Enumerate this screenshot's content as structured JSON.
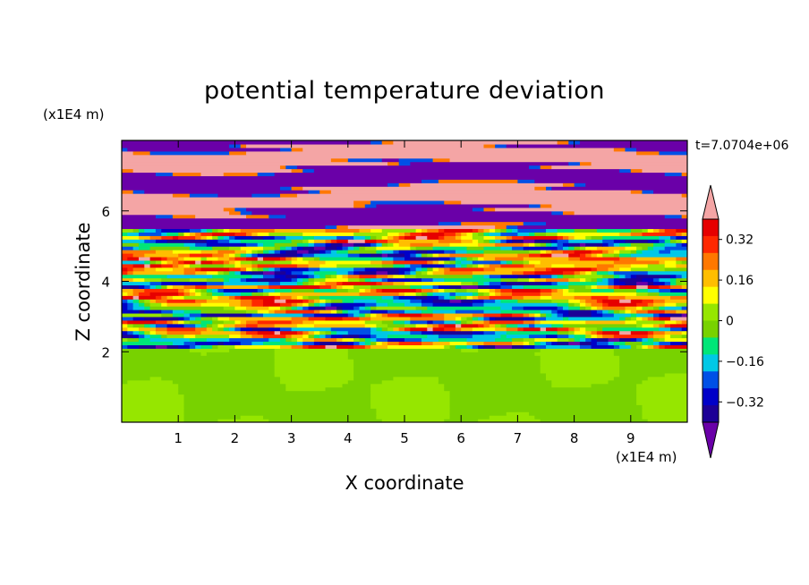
{
  "chart_data": {
    "type": "heatmap",
    "title": "potential temperature deviation",
    "xlabel": "X coordinate",
    "ylabel": "Z coordinate",
    "x_unit": "(x1E4 m)",
    "y_unit": "(x1E4 m)",
    "time_label": "t=7.0704e+06",
    "xlim": [
      0,
      10
    ],
    "ylim": [
      0,
      8
    ],
    "x_ticks": [
      "1",
      "2",
      "3",
      "4",
      "5",
      "6",
      "7",
      "8",
      "9"
    ],
    "y_ticks": [
      "2",
      "4",
      "6"
    ],
    "colorbar": {
      "levels": [
        -0.48,
        -0.4,
        -0.32,
        -0.24,
        -0.16,
        -0.08,
        0,
        0.08,
        0.16,
        0.24,
        0.32,
        0.4,
        0.48
      ],
      "labels": [
        "0.32",
        "0.16",
        "0",
        "−0.16",
        "−0.32"
      ],
      "colors": [
        "#6a00a8",
        "#1c0096",
        "#0000c8",
        "#0050e6",
        "#00c8e6",
        "#00e678",
        "#78d200",
        "#96e600",
        "#ffff00",
        "#ffbe00",
        "#ff7800",
        "#ff2800",
        "#e60000",
        "#f4a5a5"
      ],
      "extend": "both"
    },
    "regions": [
      {
        "z_range": [
          0,
          2.1
        ],
        "pattern": "smooth mix of near-zero values (green / yellow-green)"
      },
      {
        "z_range": [
          2.1,
          5.5
        ],
        "pattern": "turbulent horizontal layers spanning full color range"
      },
      {
        "z_range": [
          5.5,
          8
        ],
        "pattern": "alternating bands of strong negative (purple) and strong positive (pink)"
      }
    ]
  }
}
